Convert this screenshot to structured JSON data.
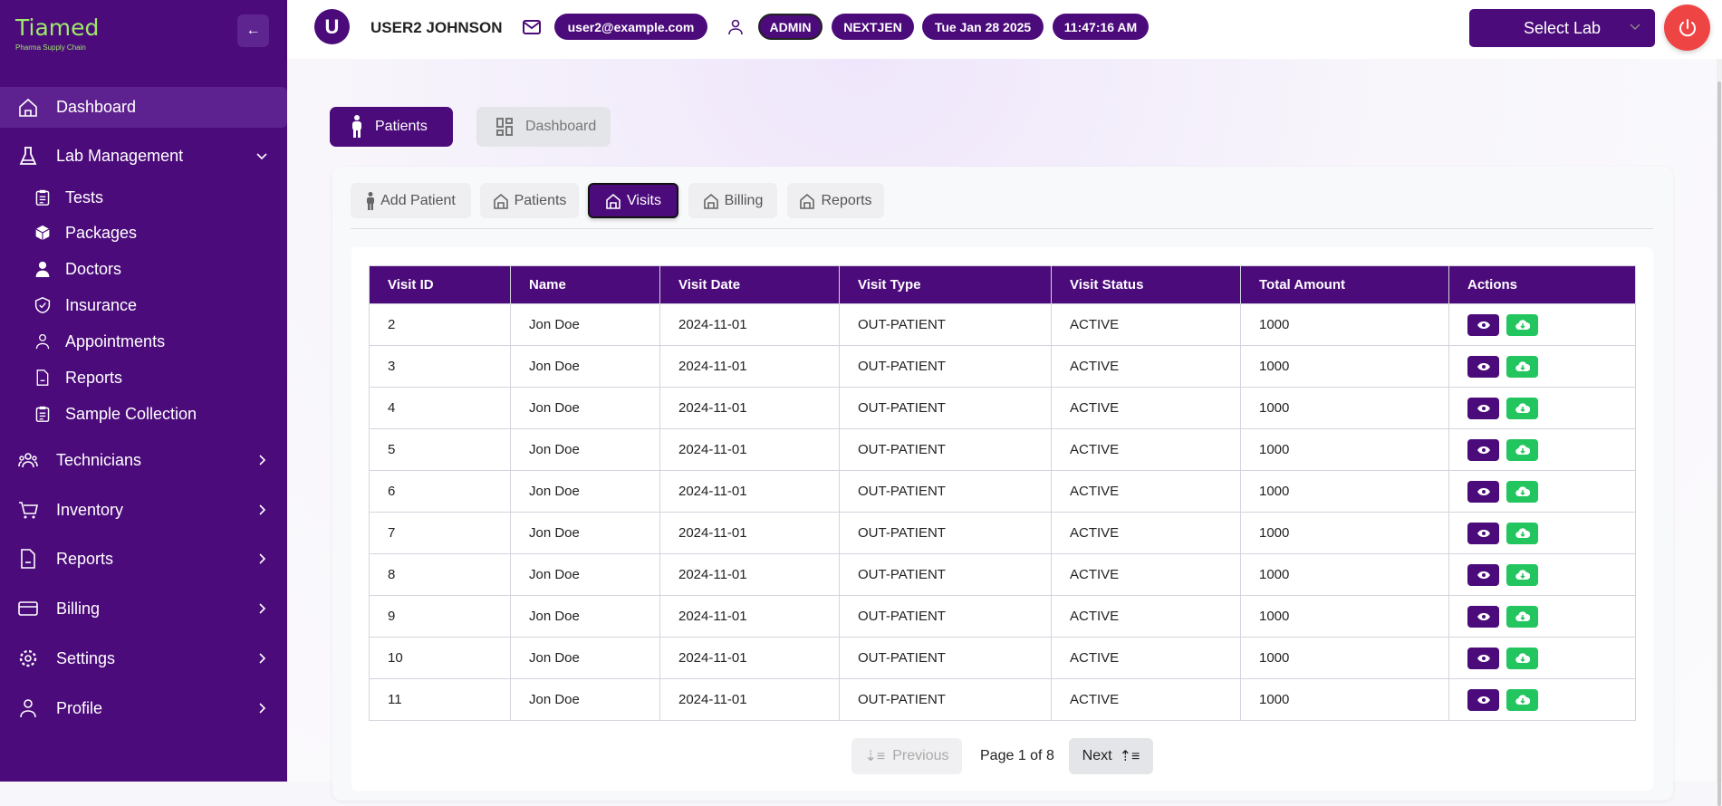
{
  "brand": {
    "name": "Tiamed",
    "tagline": "Pharma Supply Chain",
    "accent": "#4b0b7b",
    "logo_color": "#9ee86a"
  },
  "sidebar": {
    "items": [
      {
        "label": "Dashboard",
        "icon": "home-icon",
        "active": true
      },
      {
        "label": "Lab Management",
        "icon": "flask-icon",
        "expanded": true
      },
      {
        "label": "Technicians",
        "icon": "users-icon"
      },
      {
        "label": "Inventory",
        "icon": "cart-icon"
      },
      {
        "label": "Reports",
        "icon": "file-icon"
      },
      {
        "label": "Billing",
        "icon": "credit-card-icon"
      },
      {
        "label": "Settings",
        "icon": "gear-icon"
      },
      {
        "label": "Profile",
        "icon": "user-icon"
      }
    ],
    "lab_sub": [
      {
        "label": "Tests",
        "icon": "clipboard-icon"
      },
      {
        "label": "Packages",
        "icon": "package-icon"
      },
      {
        "label": "Doctors",
        "icon": "doctor-icon"
      },
      {
        "label": "Insurance",
        "icon": "shield-icon"
      },
      {
        "label": "Appointments",
        "icon": "user-icon"
      },
      {
        "label": "Reports",
        "icon": "file-icon"
      },
      {
        "label": "Sample Collection",
        "icon": "clipboard-icon"
      }
    ]
  },
  "header": {
    "avatar": "U",
    "user_name": "USER2 JOHNSON",
    "email": "user2@example.com",
    "role": "ADMIN",
    "org": "NEXTJEN",
    "date": "Tue Jan 28 2025",
    "time": "11:47:16 AM",
    "select_lab": "Select Lab"
  },
  "top_buttons": {
    "patients": "Patients",
    "dashboard": "Dashboard"
  },
  "tabs": [
    {
      "label": "Add Patient"
    },
    {
      "label": "Patients"
    },
    {
      "label": "Visits",
      "active": true
    },
    {
      "label": "Billing"
    },
    {
      "label": "Reports"
    }
  ],
  "table": {
    "columns": [
      "Visit ID",
      "Name",
      "Visit Date",
      "Visit Type",
      "Visit Status",
      "Total Amount",
      "Actions"
    ],
    "rows": [
      [
        "2",
        "Jon Doe",
        "2024-11-01",
        "OUT-PATIENT",
        "ACTIVE",
        "1000"
      ],
      [
        "3",
        "Jon Doe",
        "2024-11-01",
        "OUT-PATIENT",
        "ACTIVE",
        "1000"
      ],
      [
        "4",
        "Jon Doe",
        "2024-11-01",
        "OUT-PATIENT",
        "ACTIVE",
        "1000"
      ],
      [
        "5",
        "Jon Doe",
        "2024-11-01",
        "OUT-PATIENT",
        "ACTIVE",
        "1000"
      ],
      [
        "6",
        "Jon Doe",
        "2024-11-01",
        "OUT-PATIENT",
        "ACTIVE",
        "1000"
      ],
      [
        "7",
        "Jon Doe",
        "2024-11-01",
        "OUT-PATIENT",
        "ACTIVE",
        "1000"
      ],
      [
        "8",
        "Jon Doe",
        "2024-11-01",
        "OUT-PATIENT",
        "ACTIVE",
        "1000"
      ],
      [
        "9",
        "Jon Doe",
        "2024-11-01",
        "OUT-PATIENT",
        "ACTIVE",
        "1000"
      ],
      [
        "10",
        "Jon Doe",
        "2024-11-01",
        "OUT-PATIENT",
        "ACTIVE",
        "1000"
      ],
      [
        "11",
        "Jon Doe",
        "2024-11-01",
        "OUT-PATIENT",
        "ACTIVE",
        "1000"
      ]
    ]
  },
  "pagination": {
    "previous": "Previous",
    "page_text": "Page 1 of 8",
    "next": "Next"
  }
}
